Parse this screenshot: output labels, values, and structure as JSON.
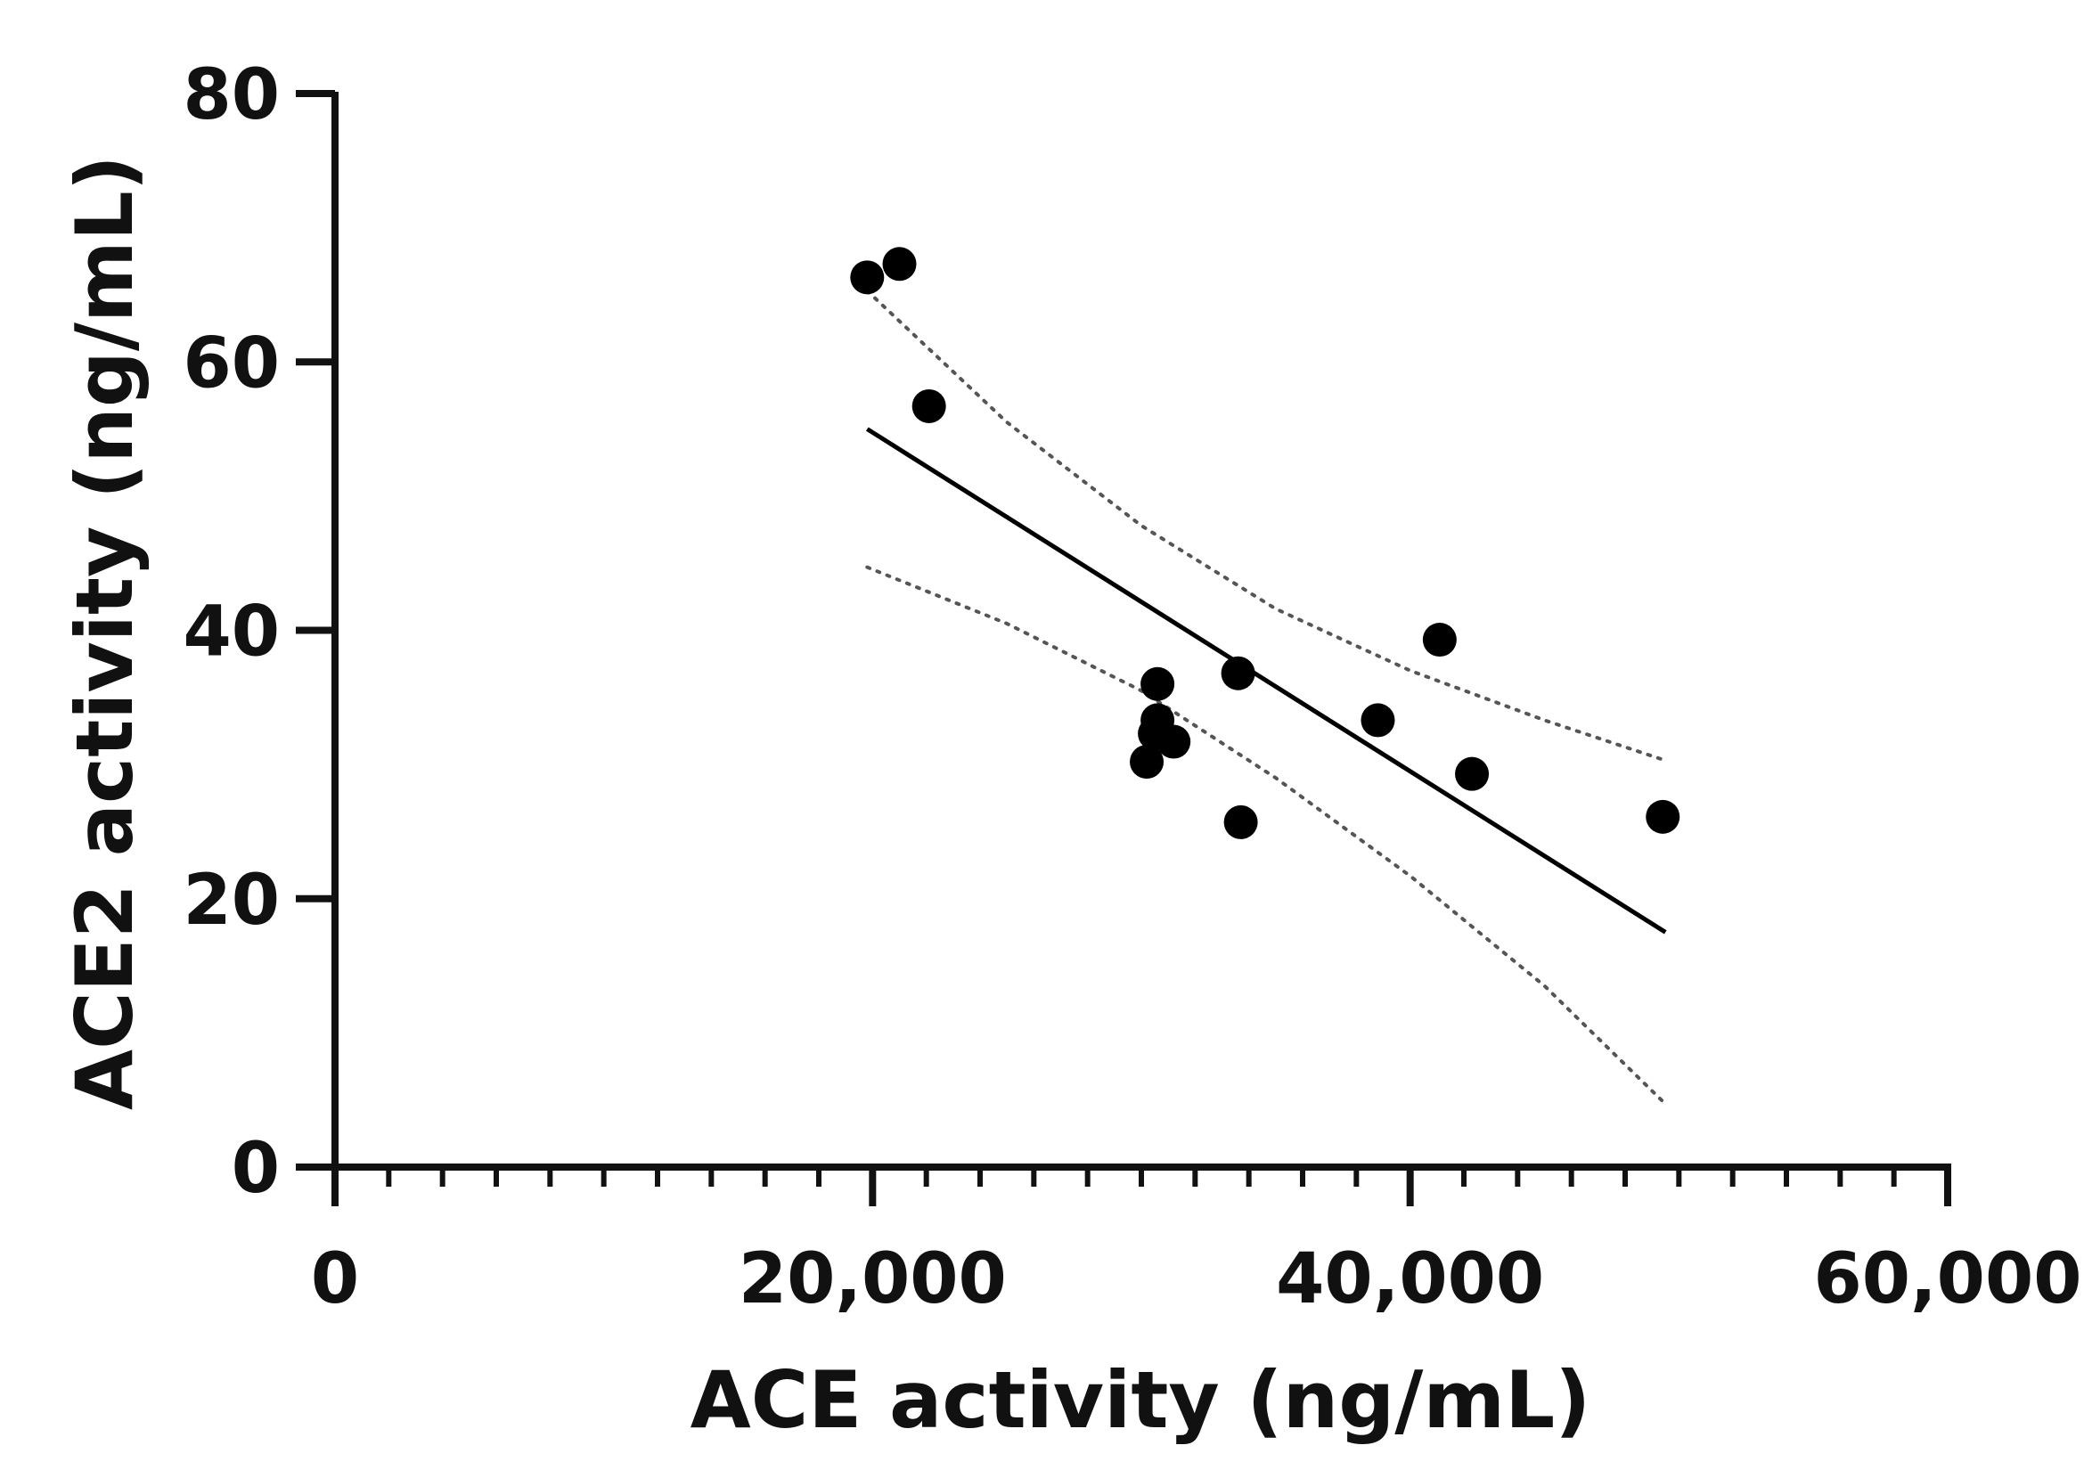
{
  "chart_data": {
    "type": "scatter",
    "xlabel": "ACE activity  (ng/mL)",
    "ylabel": "ACE2 activity  (ng/mL)",
    "xlim": [
      0,
      60000
    ],
    "ylim": [
      0,
      80
    ],
    "x_ticks": [
      0,
      20000,
      40000,
      60000
    ],
    "x_tick_labels": [
      "0",
      "20,000",
      "40,000",
      "60,000"
    ],
    "x_minor_step": 2000,
    "y_ticks": [
      0,
      20,
      40,
      60,
      80
    ],
    "y_tick_labels": [
      "0",
      "20",
      "40",
      "60",
      "80"
    ],
    "grid": false,
    "legend": "none",
    "series": [
      {
        "name": "samples",
        "kind": "points",
        "color": "#000000",
        "x": [
          19800,
          21000,
          22100,
          30200,
          30600,
          30600,
          30500,
          31200,
          33600,
          33700,
          38800,
          41100,
          42300,
          49400
        ],
        "y": [
          66.3,
          67.3,
          56.7,
          30.2,
          36.0,
          33.3,
          32.3,
          31.7,
          36.8,
          25.7,
          33.3,
          39.3,
          29.3,
          26.1
        ]
      },
      {
        "name": "linear fit",
        "kind": "line",
        "color": "#000000",
        "x": [
          19800,
          49500
        ],
        "y": [
          55.0,
          17.5
        ]
      },
      {
        "name": "95% CI upper",
        "kind": "dotted",
        "color": "#555555",
        "x": [
          19800,
          25000,
          30000,
          35000,
          40000,
          45000,
          49500
        ],
        "y": [
          65.3,
          55.5,
          47.8,
          41.6,
          37.0,
          33.3,
          30.3
        ]
      },
      {
        "name": "95% CI lower",
        "kind": "dotted",
        "color": "#555555",
        "x": [
          19800,
          25000,
          30000,
          35000,
          40000,
          45000,
          49500
        ],
        "y": [
          44.7,
          40.5,
          35.5,
          29.0,
          21.7,
          13.5,
          4.7
        ]
      }
    ]
  }
}
